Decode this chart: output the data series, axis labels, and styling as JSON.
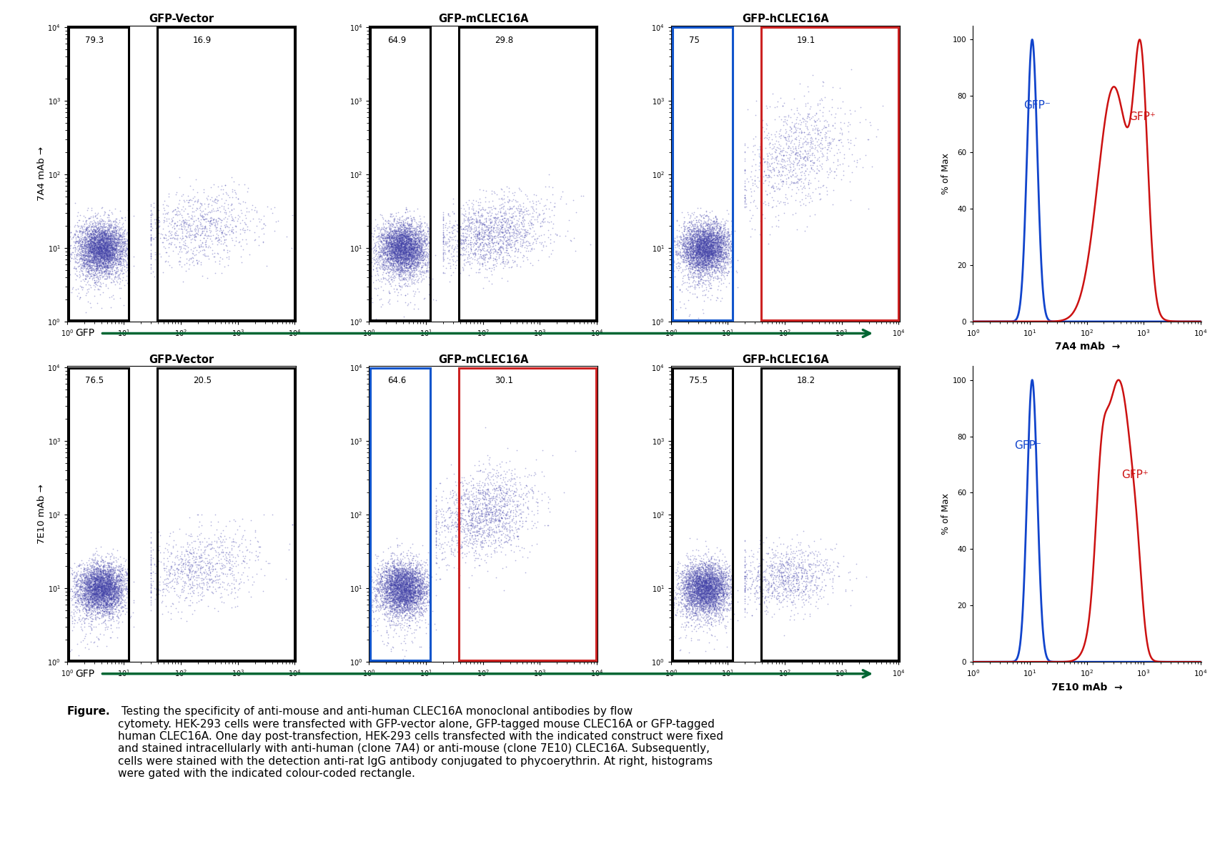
{
  "title_row1": [
    "GFP-Vector",
    "GFP-mCLEC16A",
    "GFP-hCLEC16A"
  ],
  "title_row2": [
    "GFP-Vector",
    "GFP-mCLEC16A",
    "GFP-hCLEC16A"
  ],
  "ylabel_row1": "7A4 mAb",
  "ylabel_row2": "7E10 mAb",
  "xlabel_scatter": "GFP",
  "xlabel_hist1": "7A4 mAb",
  "xlabel_hist2": "7E10 mAb",
  "hist_ylabel": "% of Max",
  "scatter_percentages": [
    [
      [
        "79.3",
        "16.9"
      ],
      [
        "64.9",
        "29.8"
      ],
      [
        "75",
        "19.1"
      ]
    ],
    [
      [
        "76.5",
        "20.5"
      ],
      [
        "64.6",
        "30.1"
      ],
      [
        "75.5",
        "18.2"
      ]
    ]
  ],
  "box_colors_row1": [
    [
      "black",
      "black"
    ],
    [
      "black",
      "black"
    ],
    [
      "#1155cc",
      "#cc2222"
    ]
  ],
  "box_colors_row2": [
    [
      "black",
      "black"
    ],
    [
      "#1155cc",
      "#cc2222"
    ],
    [
      "black",
      "black"
    ]
  ],
  "background_color": "#ffffff",
  "green_arrow_color": "#006633",
  "caption_bold": "Figure.",
  "caption_rest": " Testing the specificity of anti-mouse and anti-human CLEC16A monoclonal antibodies by flow\ncytomety. HEK-293 cells were transfected with GFP-vector alone, GFP-tagged mouse CLEC16A or GFP-tagged\nhuman CLEC16A. One day post-transfection, HEK-293 cells transfected with the indicated construct were fixed\nand stained intracellularly with anti-human (clone 7A4) or anti-mouse (clone 7E10) CLEC16A. Subsequently,\ncells were stained with the detection anti-rat IgG antibody conjugated to phycoerythrin. At right, histograms\nwere gated with the indicated colour-coded rectangle."
}
